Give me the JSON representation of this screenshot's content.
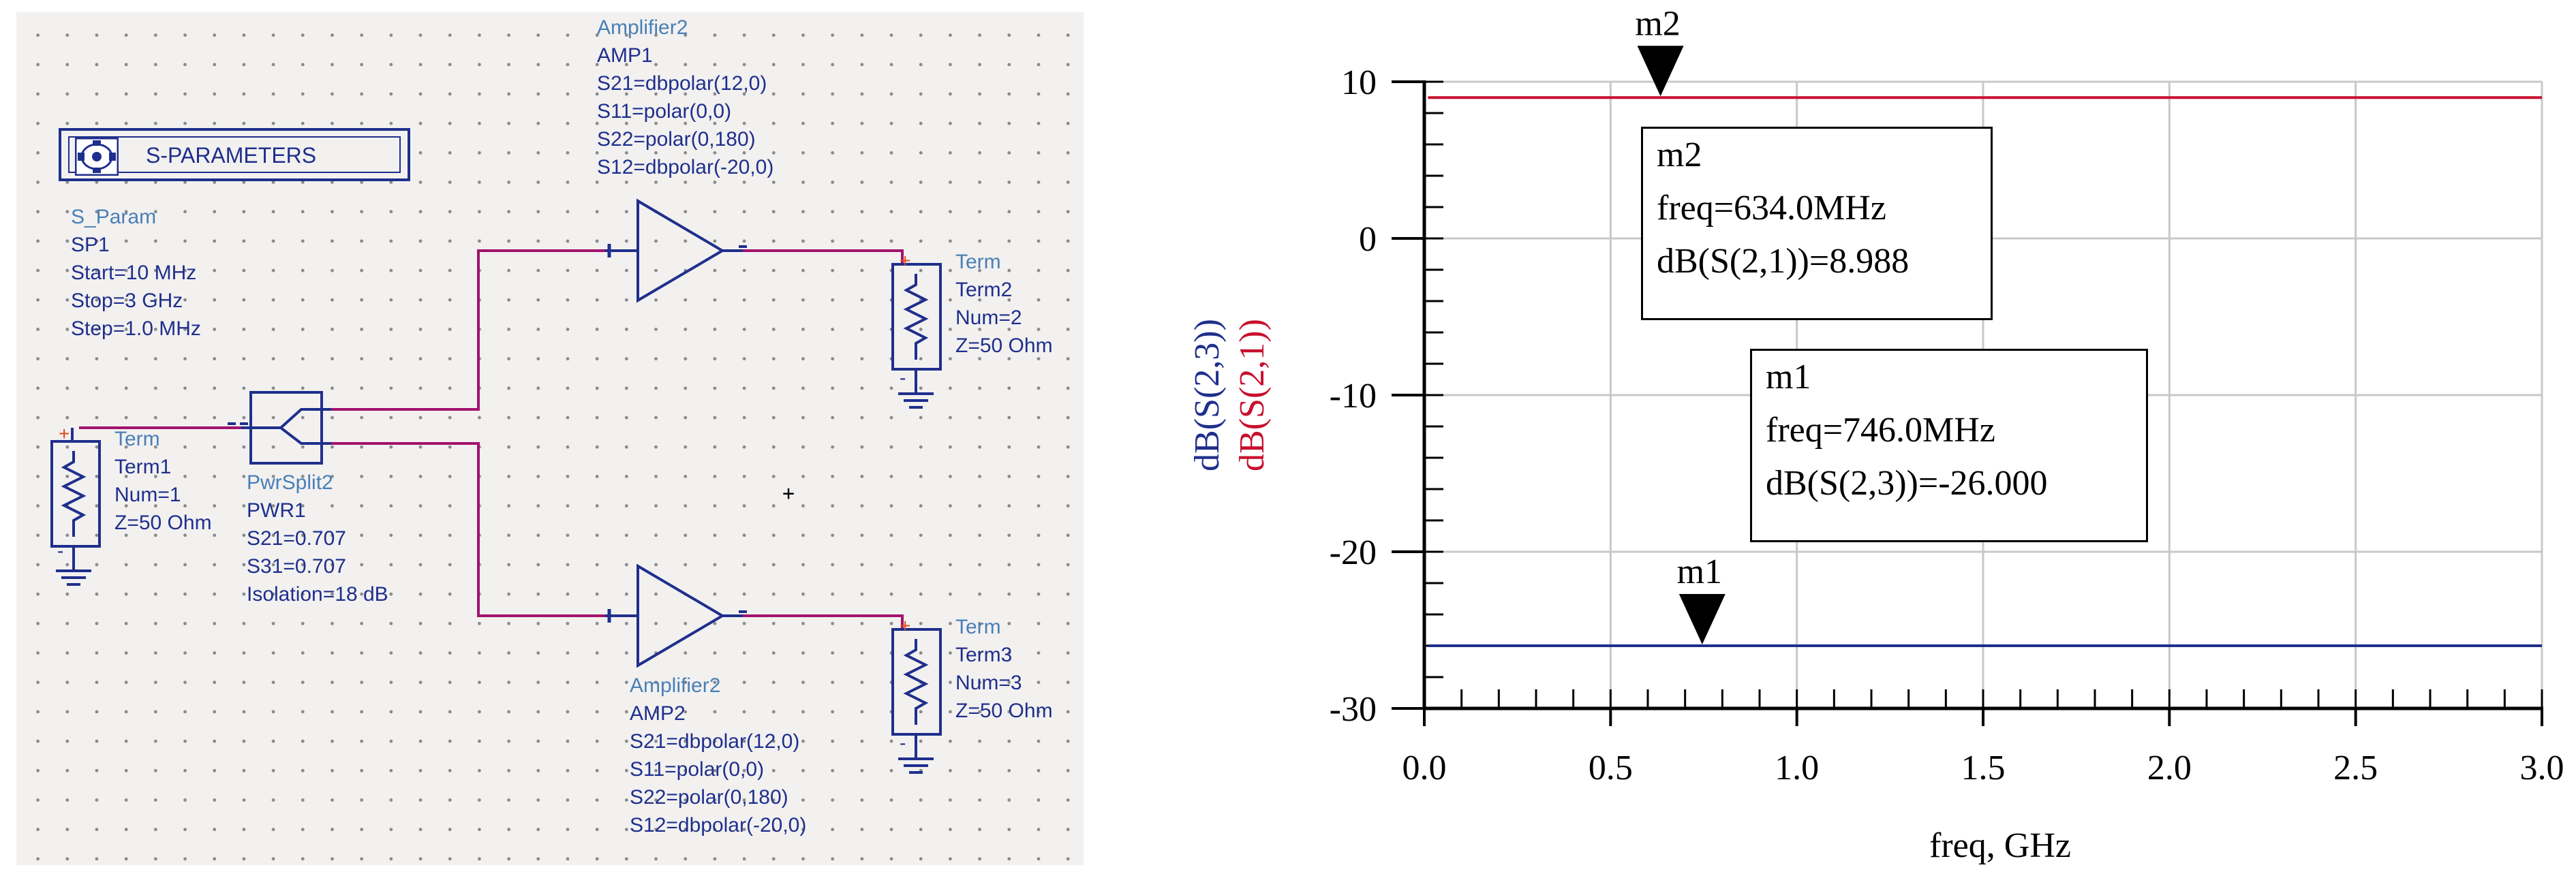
{
  "schematic": {
    "sparam_box": {
      "label": "S-PARAMETERS",
      "icon": "s-parameter-controller-icon"
    },
    "sparam_block": {
      "type": "S_Param",
      "name": "SP1",
      "params": [
        "Start=10 MHz",
        "Stop=3 GHz",
        "Step=1.0 MHz"
      ]
    },
    "amp1": {
      "type": "Amplifier2",
      "name": "AMP1",
      "params": [
        "S21=dbpolar(12,0)",
        "S11=polar(0,0)",
        "S22=polar(0,180)",
        "S12=dbpolar(-20,0)"
      ]
    },
    "amp2": {
      "type": "Amplifier2",
      "name": "AMP2",
      "params": [
        "S21=dbpolar(12,0)",
        "S11=polar(0,0)",
        "S22=polar(0,180)",
        "S12=dbpolar(-20,0)"
      ]
    },
    "splitter": {
      "type": "PwrSplit2",
      "name": "PWR1",
      "params": [
        "S21=0.707",
        "S31=0.707",
        "Isolation=18 dB"
      ]
    },
    "term1": {
      "type": "Term",
      "name": "Term1",
      "params": [
        "Num=1",
        "Z=50 Ohm"
      ]
    },
    "term2": {
      "type": "Term",
      "name": "Term2",
      "params": [
        "Num=2",
        "Z=50 Ohm"
      ]
    },
    "term3": {
      "type": "Term",
      "name": "Term3",
      "params": [
        "Num=3",
        "Z=50 Ohm"
      ]
    },
    "cursor": "+",
    "colors": {
      "wire": "#a3126b",
      "component": "#1f2f8c",
      "param_text": "#1f2f8c",
      "type_text": "#4a7fb5",
      "grid_bg": "#f2f1f0"
    }
  },
  "chart_data": {
    "type": "line",
    "xlabel": "freq, GHz",
    "ylabel": [
      "dB(S(2,3))",
      "dB(S(2,1))"
    ],
    "xlim": [
      0.0,
      3.0
    ],
    "ylim": [
      -30,
      10
    ],
    "xticks": [
      "0.0",
      "0.5",
      "1.0",
      "1.5",
      "2.0",
      "2.5",
      "3.0"
    ],
    "xtick_values": [
      0.0,
      0.5,
      1.0,
      1.5,
      2.0,
      2.5,
      3.0
    ],
    "yticks": [
      "10",
      "0",
      "-10",
      "-20",
      "-30"
    ],
    "ytick_values": [
      10,
      0,
      -10,
      -20,
      -30
    ],
    "x_minor_step": 0.1,
    "y_minor_step": 2,
    "series": [
      {
        "name": "dB(S(2,1))",
        "color": "#c8102e",
        "x": [
          0.01,
          3.0
        ],
        "y": [
          8.988,
          8.988
        ]
      },
      {
        "name": "dB(S(2,3))",
        "color": "#1f2f8c",
        "x": [
          0.01,
          3.0
        ],
        "y": [
          -26.0,
          -26.0
        ]
      }
    ],
    "markers": [
      {
        "id": "m2",
        "freq": 0.634,
        "value": 8.988,
        "lines": [
          "m2",
          "freq=634.0MHz",
          "dB(S(2,1))=8.988"
        ]
      },
      {
        "id": "m1",
        "freq": 0.746,
        "value": -26.0,
        "lines": [
          "m1",
          "freq=746.0MHz",
          "dB(S(2,3))=-26.000"
        ]
      }
    ],
    "grid": true
  }
}
